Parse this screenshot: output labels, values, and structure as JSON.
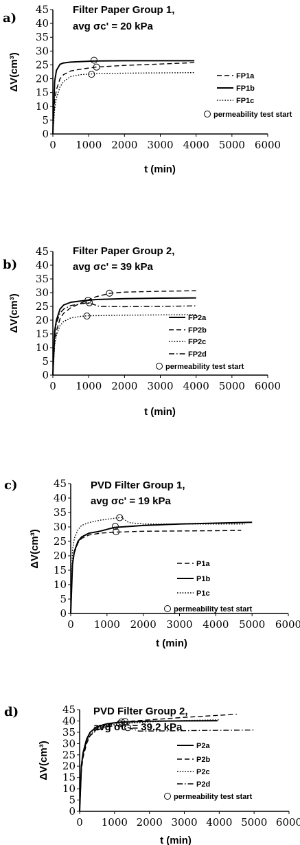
{
  "chart_data": [
    {
      "type": "line",
      "panel": "a)",
      "title_line1": "Filter Paper Group 1,",
      "title_line2": "avg σc' = 20 kPa",
      "xlabel": "t (min)",
      "ylabel": "ΔV(cm³)",
      "xlim": [
        0,
        6000
      ],
      "ylim": [
        0,
        45
      ],
      "xticks": [
        "0",
        "1000",
        "2000",
        "3000",
        "4000",
        "5000",
        "6000"
      ],
      "yticks": [
        "0",
        "5",
        "10",
        "15",
        "20",
        "25",
        "30",
        "35",
        "40",
        "45"
      ],
      "series": [
        {
          "name": "FP1a",
          "style": "dashed",
          "x": [
            0,
            50,
            100,
            200,
            300,
            500,
            800,
            1200,
            2000,
            3000,
            3950
          ],
          "y": [
            0,
            12,
            16,
            20,
            21.5,
            22.8,
            23.5,
            24.2,
            24.8,
            25.3,
            25.8
          ]
        },
        {
          "name": "FP1b",
          "style": "solid",
          "x": [
            0,
            50,
            100,
            200,
            300,
            500,
            800,
            1200,
            2000,
            3000,
            3950
          ],
          "y": [
            0,
            19,
            23,
            25.2,
            25.7,
            26,
            26.2,
            26.4,
            26.5,
            26.5,
            26.5
          ]
        },
        {
          "name": "FP1c",
          "style": "dotted",
          "x": [
            0,
            50,
            100,
            200,
            300,
            500,
            800,
            1200,
            2000,
            3000,
            3950
          ],
          "y": [
            0,
            9,
            13,
            17,
            19,
            20.8,
            21.5,
            21.8,
            22,
            22.1,
            22.2
          ]
        }
      ],
      "markers": {
        "name": "permeability test start",
        "x": [
          1150,
          1220,
          1080
        ],
        "y": [
          26.7,
          24.2,
          21.6
        ]
      },
      "legend_placement": "bottom-right"
    },
    {
      "type": "line",
      "panel": "b)",
      "title_line1": "Filter Paper Group 2,",
      "title_line2": "avg σc' = 39 kPa",
      "xlabel": "t (min)",
      "ylabel": "ΔV(cm³)",
      "xlim": [
        0,
        6000
      ],
      "ylim": [
        0,
        45
      ],
      "xticks": [
        "0",
        "1000",
        "2000",
        "3000",
        "4000",
        "5000",
        "6000"
      ],
      "yticks": [
        "0",
        "5",
        "10",
        "15",
        "20",
        "25",
        "30",
        "35",
        "40",
        "45"
      ],
      "series": [
        {
          "name": "FP2a",
          "style": "solid",
          "x": [
            0,
            50,
            100,
            200,
            300,
            500,
            800,
            1200,
            2000,
            3000,
            4000
          ],
          "y": [
            0,
            16,
            20,
            24,
            25.5,
            26.5,
            27,
            27.5,
            27.8,
            28,
            28.1
          ]
        },
        {
          "name": "FP2b",
          "style": "dashed",
          "x": [
            0,
            50,
            100,
            200,
            300,
            500,
            800,
            1200,
            1600,
            2000,
            3000,
            4000
          ],
          "y": [
            0,
            12,
            16,
            20.5,
            22.5,
            24.5,
            26.3,
            28.5,
            29.8,
            30.2,
            30.5,
            30.7
          ]
        },
        {
          "name": "FP2c",
          "style": "dotted",
          "x": [
            0,
            50,
            100,
            200,
            300,
            500,
            800,
            1000,
            2000,
            3000,
            4000
          ],
          "y": [
            0,
            11,
            14.5,
            18,
            19.5,
            20.8,
            21.4,
            21.6,
            21.8,
            21.9,
            22
          ]
        },
        {
          "name": "FP2d",
          "style": "dashdot",
          "x": [
            0,
            50,
            100,
            200,
            300,
            500,
            800,
            1000,
            1300,
            2000,
            3000,
            4000
          ],
          "y": [
            0,
            15,
            19,
            22.5,
            24,
            25.3,
            26,
            26.3,
            25,
            24.9,
            25,
            25.2
          ]
        }
      ],
      "markers": {
        "name": "permeability test start",
        "x": [
          1580,
          980,
          950,
          1020
        ],
        "y": [
          29.8,
          27.2,
          21.5,
          26.3
        ]
      },
      "legend_placement": "bottom-right"
    },
    {
      "type": "line",
      "panel": "c)",
      "title_line1": "PVD Filter Group 1,",
      "title_line2": "avg σc' = 19 kPa",
      "xlabel": "t (min)",
      "ylabel": "ΔV(cm³)",
      "xlim": [
        0,
        6000
      ],
      "ylim": [
        0,
        45
      ],
      "xticks": [
        "0",
        "1000",
        "2000",
        "3000",
        "4000",
        "5000",
        "6000"
      ],
      "yticks": [
        "0",
        "5",
        "10",
        "15",
        "20",
        "25",
        "30",
        "35",
        "40",
        "45"
      ],
      "series": [
        {
          "name": "P1a",
          "style": "dashed",
          "x": [
            0,
            50,
            100,
            200,
            300,
            500,
            800,
            1200,
            2000,
            3000,
            4000,
            4700
          ],
          "y": [
            0,
            17,
            21,
            24.5,
            26,
            27.2,
            27.8,
            28.2,
            28.5,
            28.6,
            28.7,
            28.8
          ]
        },
        {
          "name": "P1b",
          "style": "solid",
          "x": [
            0,
            50,
            100,
            200,
            300,
            500,
            800,
            1200,
            2000,
            3000,
            4000,
            5000
          ],
          "y": [
            0,
            17,
            21.5,
            25,
            26.5,
            27.8,
            28.5,
            29.8,
            30.5,
            31,
            31.3,
            31.6
          ]
        },
        {
          "name": "P1c",
          "style": "dotted",
          "x": [
            0,
            50,
            100,
            200,
            300,
            500,
            800,
            1200,
            1400,
            1600,
            2000,
            3000,
            4000,
            4800
          ],
          "y": [
            0,
            22,
            26,
            29,
            30.5,
            31.5,
            32.3,
            33,
            33.3,
            31.5,
            31,
            31,
            31,
            31
          ]
        }
      ],
      "markers": {
        "name": "permeability test start",
        "x": [
          1350,
          1230,
          1250
        ],
        "y": [
          33.2,
          30.2,
          28.3
        ]
      },
      "legend_placement": "bottom-right"
    },
    {
      "type": "line",
      "panel": "d)",
      "title_line1": "PVD Filter Group 2,",
      "title_line2": "avg σc' = 39.2 kPa",
      "xlabel": "t (min)",
      "ylabel": "ΔV(cm³)",
      "xlim": [
        0,
        6000
      ],
      "ylim": [
        0,
        45
      ],
      "xticks": [
        "0",
        "1000",
        "2000",
        "3000",
        "4000",
        "5000",
        "6000"
      ],
      "yticks": [
        "0",
        "5",
        "10",
        "15",
        "20",
        "25",
        "30",
        "35",
        "40",
        "45"
      ],
      "series": [
        {
          "name": "P2a",
          "style": "solid",
          "x": [
            0,
            50,
            100,
            200,
            300,
            500,
            800,
            1200,
            2000,
            3000,
            3950
          ],
          "y": [
            0,
            20,
            26,
            32,
            35,
            37.5,
            38.8,
            39.5,
            39.9,
            40,
            40.1
          ]
        },
        {
          "name": "P2b",
          "style": "dashed",
          "x": [
            0,
            50,
            100,
            200,
            300,
            500,
            800,
            1200,
            2000,
            3000,
            4000,
            4500
          ],
          "y": [
            0,
            18,
            24,
            30,
            33.5,
            36.5,
            38.3,
            39.6,
            40.5,
            41.6,
            42.5,
            43
          ]
        },
        {
          "name": "P2c",
          "style": "dotted",
          "x": [
            0,
            50,
            100,
            200,
            300,
            500,
            800,
            1200,
            1400,
            2000,
            3000,
            4000
          ],
          "y": [
            0,
            19,
            25,
            31,
            34,
            36.8,
            38,
            38.8,
            39,
            39.6,
            40.2,
            40.5
          ]
        },
        {
          "name": "P2d",
          "style": "dashdot",
          "x": [
            0,
            50,
            100,
            200,
            300,
            500,
            800,
            1200,
            1400,
            1700,
            2500,
            3500,
            5000
          ],
          "y": [
            0,
            20,
            25.5,
            31,
            33.5,
            36,
            37.5,
            38.2,
            37,
            35.5,
            35.6,
            35.8,
            36
          ]
        }
      ],
      "markers": {
        "name": "permeability test start",
        "x": [
          1300,
          1200,
          1150,
          1380
        ],
        "y": [
          39.8,
          39.6,
          38.8,
          37
        ]
      },
      "legend_placement": "bottom-right"
    }
  ]
}
